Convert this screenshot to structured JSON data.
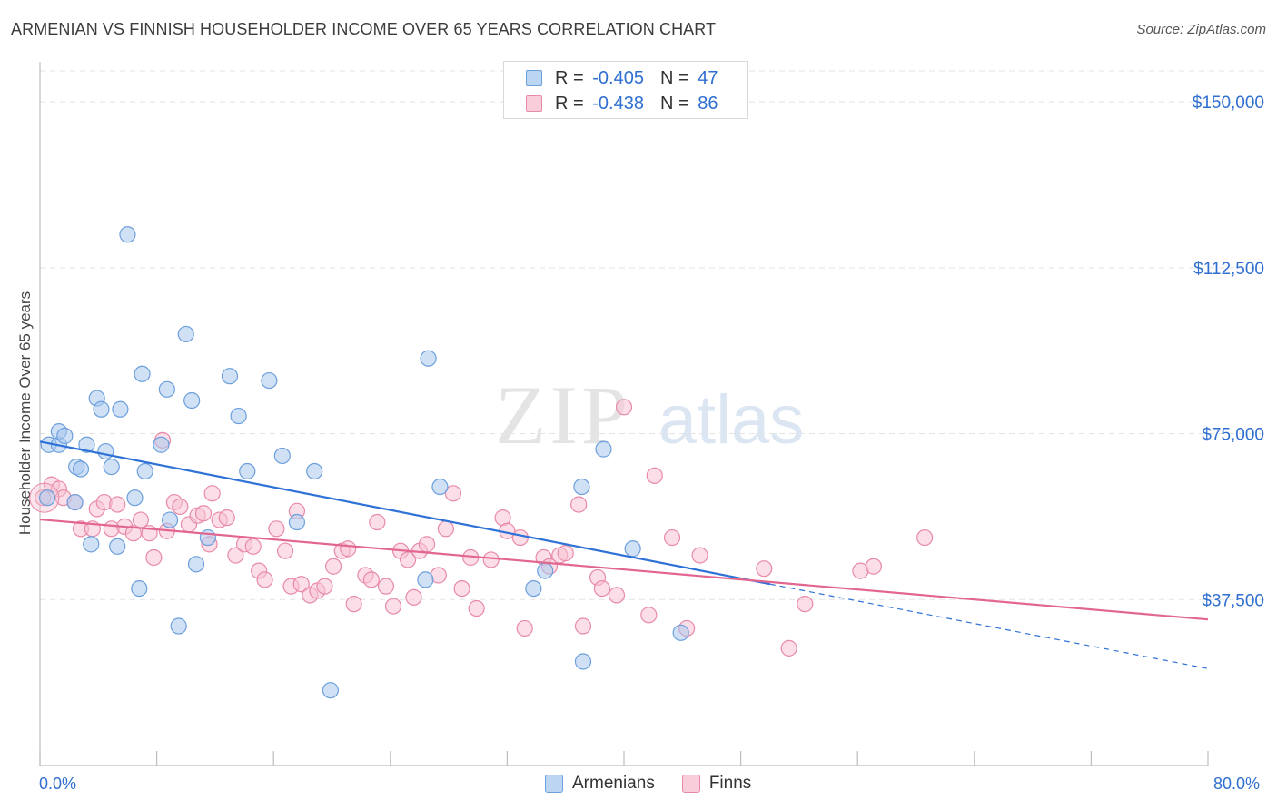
{
  "header": {
    "title": "ARMENIAN VS FINNISH HOUSEHOLDER INCOME OVER 65 YEARS CORRELATION CHART",
    "source": "Source: ZipAtlas.com"
  },
  "watermark": {
    "zip": "ZIP",
    "atlas": "atlas"
  },
  "legend_top": {
    "rows": [
      {
        "r_label": "R = ",
        "r_value": "-0.405",
        "n_label": "N = ",
        "n_value": "47",
        "color": "#a9c8ef"
      },
      {
        "r_label": "R = ",
        "r_value": "-0.438",
        "n_label": "N = ",
        "n_value": "86",
        "color": "#f5b8cb"
      }
    ]
  },
  "legend_bottom": {
    "items": [
      {
        "label": "Armenians",
        "color": "#a9c8ef"
      },
      {
        "label": "Finns",
        "color": "#f5b8cb"
      }
    ]
  },
  "colors": {
    "armenians_fill": "#a9c8ef",
    "armenians_stroke": "#6c9fdc",
    "armenians_line": "#2f72d6",
    "finns_fill": "#f7c3d3",
    "finns_stroke": "#e88aa8",
    "finns_line": "#e2668f",
    "tick_label": "#2f6fd0",
    "grid": "#e3e3e3"
  },
  "chart_data": {
    "type": "scatter",
    "title": "ARMENIAN VS FINNISH HOUSEHOLDER INCOME OVER 65 YEARS CORRELATION CHART",
    "xlabel": "",
    "ylabel": "Householder Income Over 65 years",
    "xlim": [
      0,
      80
    ],
    "ylim": [
      0,
      157000
    ],
    "x_tick_labels": [
      "0.0%",
      "80.0%"
    ],
    "y_ticks": [
      37500,
      75000,
      112500,
      150000
    ],
    "y_tick_labels": [
      "$37,500",
      "$75,000",
      "$112,500",
      "$150,000"
    ],
    "grid": "horizontal dashed",
    "legend": "top-center",
    "series": [
      {
        "name": "Armenians",
        "r": -0.405,
        "n": 47,
        "trend": {
          "x0": 0,
          "y0": 73200,
          "x1": 50,
          "y1": 41000,
          "dashed_to_x": 80,
          "dashed_y1": 21900
        },
        "points": [
          [
            0.5,
            60500
          ],
          [
            0.6,
            72500
          ],
          [
            1.3,
            72500
          ],
          [
            1.3,
            75500
          ],
          [
            1.7,
            74500
          ],
          [
            2.4,
            59500
          ],
          [
            2.5,
            67500
          ],
          [
            2.8,
            67000
          ],
          [
            3.2,
            72500
          ],
          [
            3.5,
            50000
          ],
          [
            3.9,
            83000
          ],
          [
            4.2,
            80500
          ],
          [
            4.5,
            71000
          ],
          [
            4.9,
            67500
          ],
          [
            5.3,
            49500
          ],
          [
            5.5,
            80500
          ],
          [
            6.0,
            120000
          ],
          [
            6.5,
            60500
          ],
          [
            6.8,
            40000
          ],
          [
            7.0,
            88500
          ],
          [
            7.2,
            66500
          ],
          [
            8.3,
            72500
          ],
          [
            8.7,
            85000
          ],
          [
            8.9,
            55500
          ],
          [
            9.5,
            31500
          ],
          [
            10.0,
            97500
          ],
          [
            10.4,
            82500
          ],
          [
            10.7,
            45500
          ],
          [
            11.5,
            51500
          ],
          [
            13.0,
            88000
          ],
          [
            13.6,
            79000
          ],
          [
            14.2,
            66500
          ],
          [
            15.7,
            87000
          ],
          [
            16.6,
            70000
          ],
          [
            17.6,
            55000
          ],
          [
            18.8,
            66500
          ],
          [
            19.9,
            17000
          ],
          [
            26.6,
            92000
          ],
          [
            26.4,
            42000
          ],
          [
            27.4,
            63000
          ],
          [
            33.8,
            40000
          ],
          [
            34.6,
            44000
          ],
          [
            37.1,
            63000
          ],
          [
            37.2,
            23500
          ],
          [
            38.6,
            71500
          ],
          [
            40.6,
            49000
          ],
          [
            43.9,
            30000
          ]
        ]
      },
      {
        "name": "Finns",
        "r": -0.438,
        "n": 86,
        "trend": {
          "x0": 0,
          "y0": 55600,
          "x1": 80,
          "y1": 33000
        },
        "points": [
          [
            0.2,
            60500
          ],
          [
            0.8,
            63500
          ],
          [
            1.3,
            62500
          ],
          [
            1.6,
            60500
          ],
          [
            2.4,
            59500
          ],
          [
            2.8,
            53500
          ],
          [
            3.6,
            53500
          ],
          [
            3.9,
            58000
          ],
          [
            4.4,
            59500
          ],
          [
            4.9,
            53500
          ],
          [
            5.3,
            59000
          ],
          [
            5.8,
            54000
          ],
          [
            6.4,
            52500
          ],
          [
            6.9,
            55500
          ],
          [
            7.5,
            52500
          ],
          [
            7.8,
            47000
          ],
          [
            8.4,
            73500
          ],
          [
            8.7,
            53000
          ],
          [
            9.2,
            59500
          ],
          [
            9.6,
            58500
          ],
          [
            10.2,
            54500
          ],
          [
            10.8,
            56500
          ],
          [
            11.2,
            57000
          ],
          [
            11.6,
            50000
          ],
          [
            11.8,
            61500
          ],
          [
            12.3,
            55500
          ],
          [
            12.8,
            56000
          ],
          [
            13.4,
            47500
          ],
          [
            14.0,
            50000
          ],
          [
            14.6,
            49500
          ],
          [
            15.0,
            44000
          ],
          [
            15.4,
            42000
          ],
          [
            16.2,
            53500
          ],
          [
            16.8,
            48500
          ],
          [
            17.2,
            40500
          ],
          [
            17.6,
            57500
          ],
          [
            17.9,
            41000
          ],
          [
            18.5,
            38500
          ],
          [
            19.0,
            39500
          ],
          [
            19.5,
            40500
          ],
          [
            20.1,
            45000
          ],
          [
            20.7,
            48500
          ],
          [
            21.1,
            49000
          ],
          [
            21.5,
            36500
          ],
          [
            22.3,
            43000
          ],
          [
            22.7,
            42000
          ],
          [
            23.1,
            55000
          ],
          [
            23.7,
            40500
          ],
          [
            24.2,
            36000
          ],
          [
            24.7,
            48500
          ],
          [
            25.2,
            46500
          ],
          [
            25.6,
            38000
          ],
          [
            26.0,
            48500
          ],
          [
            26.5,
            50000
          ],
          [
            27.3,
            43000
          ],
          [
            27.8,
            53500
          ],
          [
            28.3,
            61500
          ],
          [
            28.9,
            40000
          ],
          [
            29.5,
            47000
          ],
          [
            29.9,
            35500
          ],
          [
            30.9,
            46500
          ],
          [
            31.7,
            56000
          ],
          [
            32.0,
            53000
          ],
          [
            32.9,
            51500
          ],
          [
            33.2,
            31000
          ],
          [
            34.5,
            47000
          ],
          [
            34.9,
            45000
          ],
          [
            35.6,
            47500
          ],
          [
            36.0,
            48000
          ],
          [
            36.9,
            59000
          ],
          [
            37.2,
            31500
          ],
          [
            38.2,
            42500
          ],
          [
            38.5,
            40000
          ],
          [
            39.5,
            38500
          ],
          [
            40.0,
            81000
          ],
          [
            41.7,
            34000
          ],
          [
            42.1,
            65500
          ],
          [
            43.3,
            51500
          ],
          [
            44.3,
            31000
          ],
          [
            45.2,
            47500
          ],
          [
            49.6,
            44500
          ],
          [
            51.3,
            26500
          ],
          [
            52.4,
            36500
          ],
          [
            56.2,
            44000
          ],
          [
            57.1,
            45000
          ],
          [
            60.6,
            51500
          ]
        ]
      }
    ]
  }
}
